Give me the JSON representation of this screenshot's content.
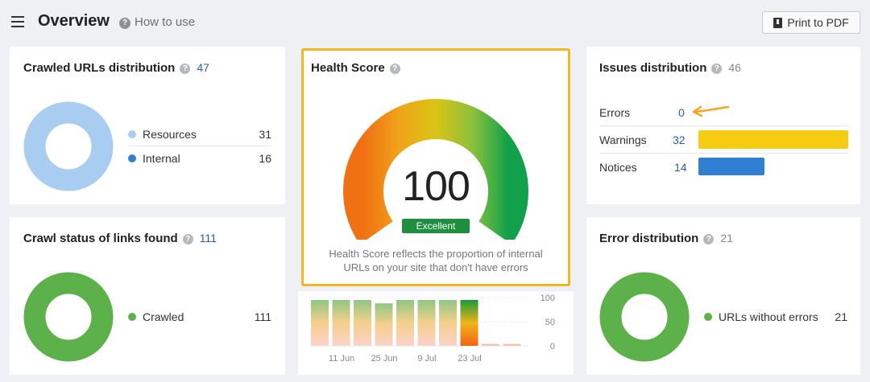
{
  "header": {
    "title": "Overview",
    "how_to": "How to use",
    "print_label": "Print to PDF"
  },
  "crawled": {
    "title": "Crawled URLs distribution",
    "count": "47",
    "items": [
      {
        "label": "Resources",
        "value": "31",
        "color": "#a9cdf0"
      },
      {
        "label": "Internal",
        "value": "16",
        "color": "#2f80d1"
      }
    ]
  },
  "crawl_status": {
    "title": "Crawl status of links found",
    "count": "111",
    "items": [
      {
        "label": "Crawled",
        "value": "111",
        "color": "#5cb14a"
      }
    ]
  },
  "health": {
    "title": "Health Score",
    "score": "100",
    "badge": "Excellent",
    "desc_line1": "Health Score reflects the proportion of internal",
    "desc_line2": "URLs on your site that don't have errors",
    "gauge_fraction": 1.0
  },
  "trend": {
    "y_ticks": [
      "100",
      "50",
      "0"
    ],
    "x_ticks": [
      "11 Jun",
      "25 Jun",
      "9 Jul",
      "23 Jul"
    ],
    "values": [
      95,
      95,
      95,
      88,
      95,
      95,
      95,
      95,
      4,
      4
    ]
  },
  "issues": {
    "title": "Issues distribution",
    "count": "46",
    "rows": [
      {
        "label": "Errors",
        "value": "0",
        "fraction": 0,
        "color": "#e53935"
      },
      {
        "label": "Warnings",
        "value": "32",
        "fraction": 1.0,
        "color": "#f5cc12"
      },
      {
        "label": "Notices",
        "value": "14",
        "fraction": 0.44,
        "color": "#2f80d1"
      }
    ]
  },
  "error_dist": {
    "title": "Error distribution",
    "count": "21",
    "items": [
      {
        "label": "URLs without errors",
        "value": "21",
        "color": "#5cb14a"
      }
    ]
  }
}
